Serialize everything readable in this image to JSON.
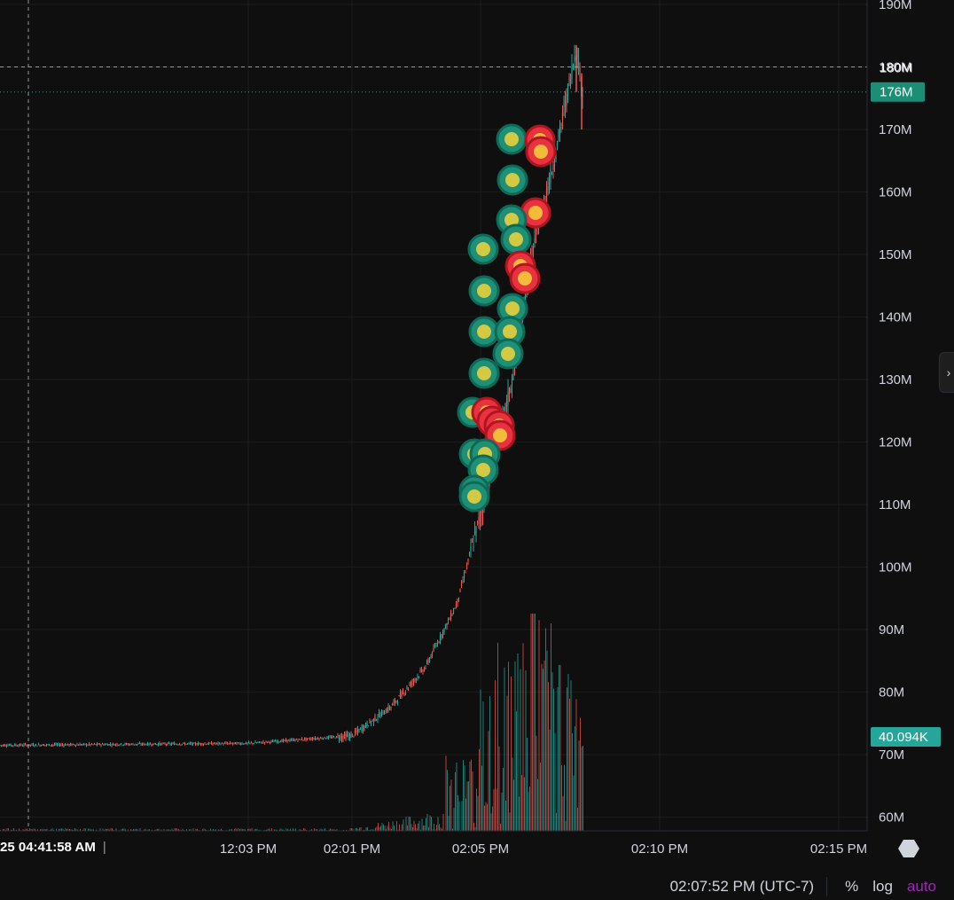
{
  "chart_data": {
    "type": "line",
    "title": "",
    "xlabel": "",
    "ylabel": "",
    "y_tick_labels": [
      "190M",
      "180M",
      "170M",
      "160M",
      "150M",
      "140M",
      "130M",
      "120M",
      "110M",
      "100M",
      "90M",
      "80M",
      "70M",
      "60M"
    ],
    "y_ticks": [
      190,
      180,
      170,
      160,
      150,
      140,
      130,
      120,
      110,
      100,
      90,
      80,
      70,
      60
    ],
    "ylim": [
      58,
      191.5
    ],
    "x_tick_labels": [
      "12:03 PM",
      "02:01 PM",
      "02:05 PM",
      "02:10 PM",
      "02:15 PM"
    ],
    "price_series": {
      "name": "",
      "points": [
        [
          "earlier",
          71.5
        ],
        [
          "12:03 PM",
          71.8
        ],
        [
          "02:01 PM",
          73.0
        ],
        [
          "02:02 PM",
          77.5
        ],
        [
          "02:03 PM",
          84.0
        ],
        [
          "02:04 PM",
          94.0
        ],
        [
          "02:05 PM",
          110.0
        ],
        [
          "02:06 PM",
          130.0
        ],
        [
          "02:06:30 PM",
          150.0
        ],
        [
          "02:07 PM",
          165.0
        ],
        [
          "02:07:30 PM",
          183.0
        ],
        [
          "02:07:52 PM",
          176.0
        ]
      ]
    },
    "crosshair_price_label": "180M",
    "last_price_label": "176M",
    "volume_label": "40.094K",
    "grid": true
  },
  "crosshair_time": "25  04:41:58 AM",
  "bottom_bar": {
    "clock": "02:07:52 PM (UTC-7)",
    "percent": "%",
    "log": "log",
    "auto": "auto"
  },
  "colors": {
    "background": "#0f0f0f",
    "grid": "#1c1c1c",
    "up": "#26a69a",
    "down": "#ef5350",
    "last_price_tag": "#1b8e75",
    "volume_tag": "#26a69a",
    "auto": "#9c27b0"
  },
  "markers": [
    {
      "icon": "cannabis-leaf",
      "color": "green"
    },
    {
      "icon": "cannabis-leaf",
      "color": "green"
    },
    {
      "icon": "smiley-hat",
      "color": "red"
    },
    {
      "icon": "smiley-hat",
      "color": "red"
    },
    {
      "icon": "smiley-hat",
      "color": "red"
    },
    {
      "icon": "pixel-figure",
      "color": "green"
    },
    {
      "icon": "pixel-figure",
      "color": "red"
    },
    {
      "icon": "cup",
      "color": "green"
    },
    {
      "icon": "avatar-portrait",
      "color": "green"
    },
    {
      "icon": "smiley",
      "color": "green"
    },
    {
      "icon": "wrestler",
      "color": "red"
    },
    {
      "icon": "pill",
      "color": "green"
    }
  ]
}
